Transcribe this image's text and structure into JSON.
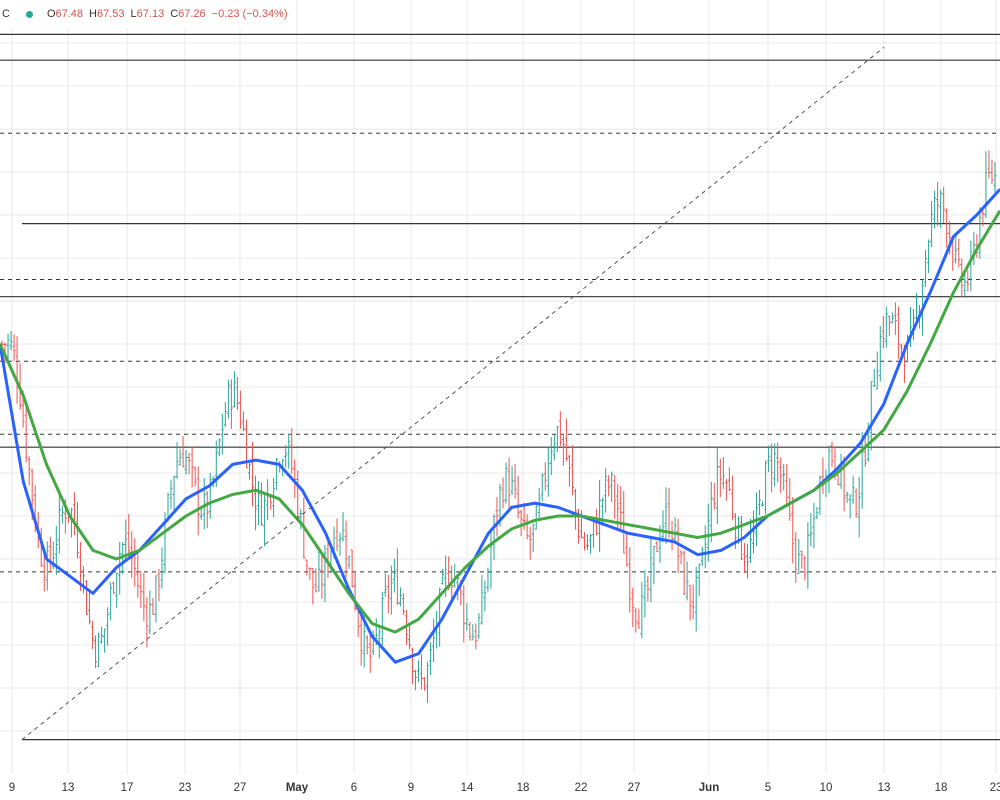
{
  "header": {
    "symbol_suffix": "C",
    "status_color": "#26a69a",
    "open_label": "O",
    "open": "67.48",
    "high_label": "H",
    "high": "67.53",
    "low_label": "L",
    "low": "67.13",
    "close_label": "C",
    "close": "67.26",
    "change": "−0.23 (−0.34%)"
  },
  "colors": {
    "up": "#26a69a",
    "down": "#ef5350",
    "ma_fast": "#2962ff",
    "ma_slow": "#43a843",
    "level": "#333333",
    "grid": "#e8e8e8"
  },
  "chart_data": {
    "type": "line",
    "x_ticks": [
      "9",
      "13",
      "17",
      "23",
      "27",
      "May",
      "6",
      "9",
      "14",
      "18",
      "22",
      "27",
      "Jun",
      "5",
      "10",
      "13",
      "18",
      "23"
    ],
    "month_ticks": [
      "May",
      "Jun"
    ],
    "price_range": [
      57.0,
      75.0
    ],
    "series": [
      {
        "color": "#2962ff",
        "values": [
          67.0,
          63.8,
          62.0,
          61.6,
          61.2,
          61.8,
          62.2,
          62.8,
          63.4,
          63.7,
          64.2,
          64.3,
          64.2,
          63.6,
          62.6,
          61.3,
          60.2,
          59.6,
          59.8,
          60.6,
          61.6,
          62.6,
          63.2,
          63.3,
          63.2,
          63.0,
          62.8,
          62.6,
          62.5,
          62.4,
          62.1,
          62.2,
          62.5,
          63.0,
          63.3,
          63.6,
          64.1,
          64.7,
          65.6,
          67.0,
          68.2,
          69.5,
          70.0,
          70.6
        ]
      },
      {
        "color": "#43a843",
        "values": [
          67.0,
          65.8,
          64.2,
          63.0,
          62.2,
          62.0,
          62.2,
          62.6,
          63.0,
          63.3,
          63.5,
          63.6,
          63.4,
          62.8,
          62.0,
          61.2,
          60.5,
          60.3,
          60.6,
          61.2,
          61.8,
          62.3,
          62.7,
          62.9,
          63.0,
          63.0,
          62.9,
          62.8,
          62.7,
          62.6,
          62.5,
          62.6,
          62.8,
          63.0,
          63.3,
          63.6,
          64.0,
          64.5,
          65.0,
          65.9,
          67.0,
          68.2,
          69.2,
          70.1
        ]
      }
    ],
    "levels_solid": [
      74.2,
      73.6,
      69.8,
      68.1,
      64.6,
      57.8
    ],
    "levels_dashed": [
      71.9,
      68.5,
      66.6,
      64.9,
      61.7
    ],
    "trendline": {
      "from": [
        9,
        57.8
      ],
      "to": [
        13,
        73.9
      ]
    }
  }
}
